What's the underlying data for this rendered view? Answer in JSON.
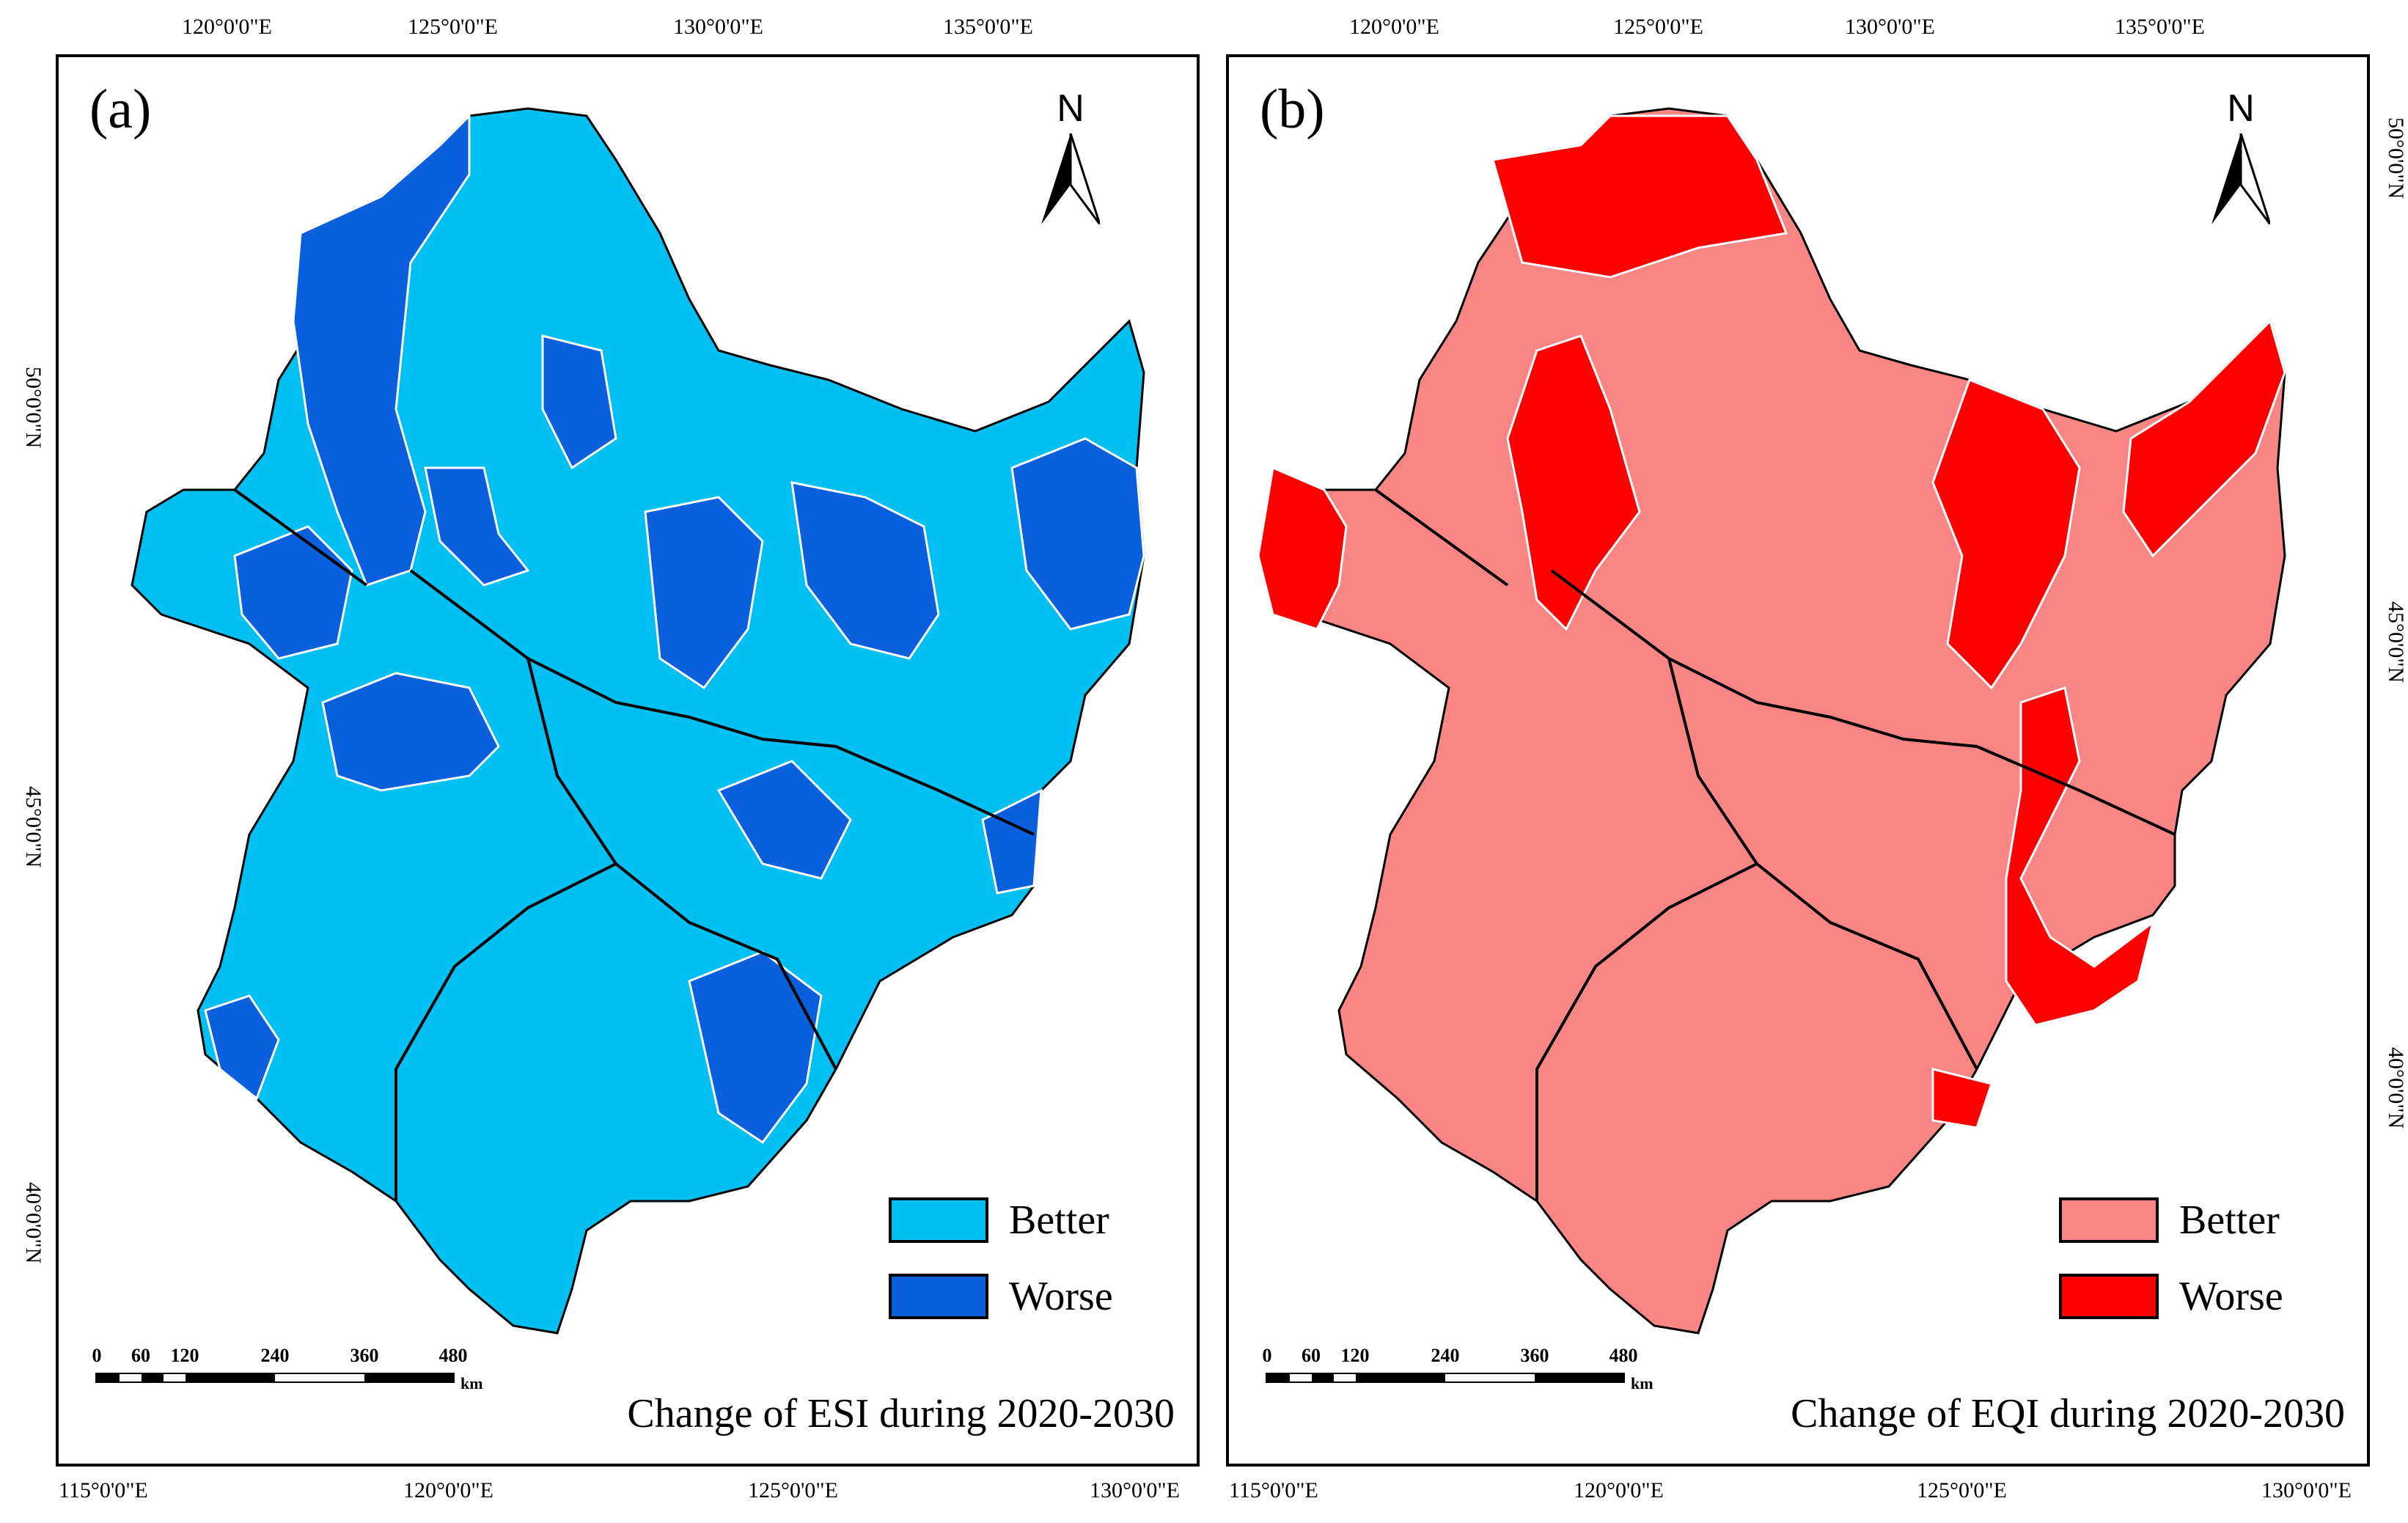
{
  "panels": [
    {
      "label": "(a)",
      "legend": [
        {
          "label": "Better",
          "color": "#00bff2"
        },
        {
          "label": "Worse",
          "color": "#0a5fdc"
        }
      ],
      "title": "Change of ESI during 2020-2030",
      "top_ticks": [
        "120°0'0\"E",
        "125°0'0\"E",
        "130°0'0\"E",
        "135°0'0\"E"
      ],
      "bottom_ticks": [
        "115°0'0\"E",
        "120°0'0\"E",
        "125°0'0\"E",
        "130°0'0\"E"
      ],
      "left_ticks": [
        "50°0'0\"N",
        "45°0'0\"N",
        "40°0'0\"N"
      ],
      "right_ticks": []
    },
    {
      "label": "(b)",
      "legend": [
        {
          "label": "Better",
          "color": "#fa8585"
        },
        {
          "label": "Worse",
          "color": "#ff0000"
        }
      ],
      "title": "Change of EQI during 2020-2030",
      "top_ticks": [
        "120°0'0\"E",
        "125°0'0\"E",
        "130°0'0\"E",
        "135°0'0\"E"
      ],
      "bottom_ticks": [
        "115°0'0\"E",
        "120°0'0\"E",
        "125°0'0\"E",
        "130°0'0\"E"
      ],
      "left_ticks": [],
      "right_ticks": [
        "50°0'0\"N",
        "45°0'0\"N",
        "40°0'0\"N"
      ]
    }
  ],
  "north_letter": "N",
  "scale": {
    "labels": [
      "0",
      "60",
      "120",
      "240",
      "360",
      "480"
    ],
    "unit": "km"
  }
}
